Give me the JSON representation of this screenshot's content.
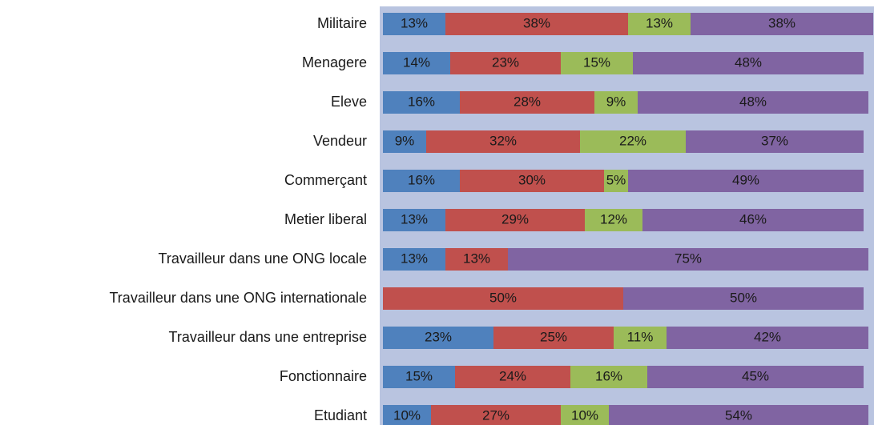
{
  "chart_data": {
    "type": "stacked-barh",
    "categories": [
      "Militaire",
      "Menagere",
      "Eleve",
      "Vendeur",
      "Commerçant",
      "Metier liberal",
      "Travailleur dans une ONG locale",
      "Travailleur dans une ONG internationale",
      "Travailleur dans une entreprise",
      "Fonctionnaire",
      "Etudiant"
    ],
    "series": [
      {
        "color": "#4f81bd",
        "values": [
          13,
          14,
          16,
          9,
          16,
          13,
          13,
          null,
          23,
          15,
          10
        ],
        "value_labels": [
          "13%",
          "14%",
          "16%",
          "9%",
          "16%",
          "13%",
          "13%",
          null,
          "23%",
          "15%",
          "10%"
        ]
      },
      {
        "color": "#c0504d",
        "values": [
          38,
          23,
          28,
          32,
          30,
          29,
          13,
          50,
          25,
          24,
          27
        ],
        "value_labels": [
          "38%",
          "23%",
          "28%",
          "32%",
          "30%",
          "29%",
          "13%",
          "50%",
          "25%",
          "24%",
          "27%"
        ]
      },
      {
        "color": "#9bbb59",
        "values": [
          13,
          15,
          9,
          22,
          5,
          12,
          null,
          null,
          11,
          16,
          10
        ],
        "value_labels": [
          "13%",
          "15%",
          "9%",
          "22%",
          "5%",
          "12%",
          null,
          null,
          "11%",
          "16%",
          "10%"
        ]
      },
      {
        "color": "#8064a2",
        "values": [
          38,
          48,
          48,
          37,
          49,
          46,
          75,
          50,
          42,
          45,
          54
        ],
        "value_labels": [
          "38%",
          "48%",
          "48%",
          "37%",
          "49%",
          "46%",
          "75%",
          "50%",
          "42%",
          "45%",
          "54%"
        ]
      }
    ],
    "plot_background": "#b9c4e0"
  }
}
